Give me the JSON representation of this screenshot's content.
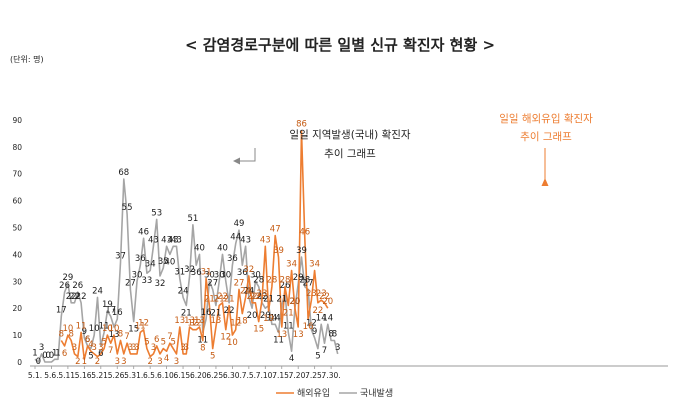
{
  "chart_data": {
    "type": "line",
    "title": "< 감염경로구분에 따른 일별 신규 확진자 현황 >",
    "unit_label": "(단위: 명)",
    "ylim": [
      0,
      90
    ],
    "yticks": [
      0,
      10,
      20,
      30,
      40,
      50,
      60,
      70,
      80,
      90
    ],
    "grid": false,
    "legend": "bottom",
    "x_tick_labels": [
      {
        "index": 0,
        "label": "5.1."
      },
      {
        "index": 5,
        "label": "5.6."
      },
      {
        "index": 10,
        "label": "5.11."
      },
      {
        "index": 15,
        "label": "5.16."
      },
      {
        "index": 20,
        "label": "5.21."
      },
      {
        "index": 25,
        "label": "5.26."
      },
      {
        "index": 30,
        "label": "5.31."
      },
      {
        "index": 35,
        "label": "6.5."
      },
      {
        "index": 40,
        "label": "6.10."
      },
      {
        "index": 45,
        "label": "6.15."
      },
      {
        "index": 50,
        "label": "6.20."
      },
      {
        "index": 55,
        "label": "6.25."
      },
      {
        "index": 60,
        "label": "6.30."
      },
      {
        "index": 65,
        "label": "7.5."
      },
      {
        "index": 70,
        "label": "7.10."
      },
      {
        "index": 75,
        "label": "7.15."
      },
      {
        "index": 80,
        "label": "7.20."
      },
      {
        "index": 85,
        "label": "7.25."
      },
      {
        "index": 90,
        "label": "7.30."
      }
    ],
    "series": [
      {
        "name": "해외유입",
        "color": "#ed7d31",
        "values": [
          8,
          6,
          10,
          8,
          3,
          2,
          11,
          1,
          6,
          4,
          3,
          2,
          3,
          5,
          10,
          7,
          10,
          3,
          8,
          3,
          7,
          3,
          3,
          3,
          11,
          12,
          5,
          2,
          3,
          6,
          3,
          5,
          4,
          7,
          5,
          3,
          13,
          3,
          3,
          13,
          12,
          12,
          13,
          8,
          31,
          21,
          5,
          13,
          21,
          22,
          12,
          21,
          10,
          12,
          27,
          18,
          24,
          32,
          22,
          22,
          15,
          23,
          43,
          19,
          28,
          47,
          39,
          13,
          28,
          21,
          34,
          20,
          13,
          86,
          46,
          16,
          23,
          34,
          22,
          23,
          22,
          20
        ],
        "x_start": 8
      },
      {
        "name": "국내발생",
        "color": "#a5a5a5",
        "values": [
          1,
          0,
          3,
          0,
          0,
          0,
          1,
          1,
          17,
          26,
          29,
          22,
          22,
          26,
          22,
          9,
          6,
          5,
          10,
          24,
          6,
          11,
          19,
          17,
          13,
          16,
          37,
          68,
          55,
          27,
          15,
          30,
          36,
          46,
          33,
          34,
          43,
          53,
          32,
          35,
          43,
          40,
          43,
          43,
          31,
          24,
          21,
          32,
          51,
          36,
          40,
          11,
          16,
          30,
          27,
          21,
          30,
          40,
          30,
          22,
          36,
          44,
          49,
          36,
          43,
          24,
          20,
          30,
          28,
          22,
          20,
          21,
          14,
          14,
          11,
          21,
          26,
          11,
          4,
          20,
          29,
          39,
          28,
          27,
          12,
          9,
          5,
          14,
          7,
          14,
          8,
          8,
          3
        ],
        "x_start": 0
      }
    ],
    "annotations": [
      {
        "text": "일일 지역발생(국내) 확진자",
        "color": "#222222"
      },
      {
        "text": "추이 그래프",
        "color": "#222222"
      },
      {
        "text": "일일 해외유입 확진자",
        "color": "#ed7d31"
      },
      {
        "text": "추이 그래프",
        "color": "#ed7d31"
      }
    ]
  }
}
